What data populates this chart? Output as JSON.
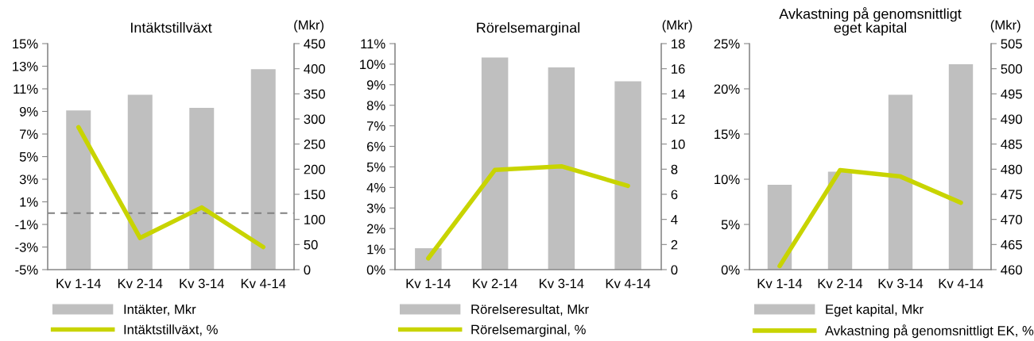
{
  "chart_data": [
    {
      "type": "bar",
      "title": "Intäktstillväxt",
      "categories": [
        "Kv 1-14",
        "Kv 2-14",
        "Kv 3-14",
        "Kv 4-14"
      ],
      "series": [
        {
          "name": "Intäkter, Mkr",
          "axis": "y2",
          "color": "#bfbfbf",
          "values": [
            317,
            348,
            322,
            399
          ]
        },
        {
          "name": "Intäktstillväxt, %",
          "type": "line",
          "axis": "y",
          "color": "#c8d400",
          "values": [
            7.6,
            -2.2,
            0.5,
            -3.0
          ]
        }
      ],
      "ylim": [
        -5,
        15
      ],
      "yticks": [
        {
          "value": -5,
          "label": "-5%"
        },
        {
          "value": -3,
          "label": "-3%"
        },
        {
          "value": -1,
          "label": "-1%"
        },
        {
          "value": 1,
          "label": "1%"
        },
        {
          "value": 3,
          "label": "3%"
        },
        {
          "value": 5,
          "label": "5%"
        },
        {
          "value": 7,
          "label": "7%"
        },
        {
          "value": 9,
          "label": "9%"
        },
        {
          "value": 11,
          "label": "11%"
        },
        {
          "value": 13,
          "label": "13%"
        },
        {
          "value": 15,
          "label": "15%"
        }
      ],
      "y2lim": [
        0,
        450
      ],
      "y2ticks": [
        0,
        50,
        100,
        150,
        200,
        250,
        300,
        350,
        400,
        450
      ],
      "y2label": "(Mkr)",
      "ref_lines": [
        {
          "axis": "y",
          "value": 0,
          "color": "#808080",
          "line_style": "dashed"
        }
      ],
      "legend": "bottom",
      "grid": false
    },
    {
      "type": "bar",
      "title": "Rörelsemarginal",
      "categories": [
        "Kv 1-14",
        "Kv 2-14",
        "Kv 3-14",
        "Kv 4-14"
      ],
      "series": [
        {
          "name": "Rörelseresultat, Mkr",
          "axis": "y2",
          "color": "#bfbfbf",
          "values": [
            1.7,
            16.9,
            16.1,
            15.0
          ]
        },
        {
          "name": "Rörelsemarginal, %",
          "type": "line",
          "axis": "y",
          "color": "#c8d400",
          "values": [
            0.55,
            4.85,
            5.03,
            4.08
          ]
        }
      ],
      "ylim": [
        0,
        11
      ],
      "yticks": [
        {
          "value": 0,
          "label": "0%"
        },
        {
          "value": 1,
          "label": "1%"
        },
        {
          "value": 2,
          "label": "2%"
        },
        {
          "value": 3,
          "label": "3%"
        },
        {
          "value": 4,
          "label": "4%"
        },
        {
          "value": 5,
          "label": "5%"
        },
        {
          "value": 6,
          "label": "6%"
        },
        {
          "value": 7,
          "label": "7%"
        },
        {
          "value": 8,
          "label": "8%"
        },
        {
          "value": 9,
          "label": "9%"
        },
        {
          "value": 10,
          "label": "10%"
        },
        {
          "value": 11,
          "label": "11%"
        }
      ],
      "y2lim": [
        0,
        18
      ],
      "y2ticks": [
        0,
        2,
        4,
        6,
        8,
        10,
        12,
        14,
        16,
        18
      ],
      "y2label": "(Mkr)",
      "legend": "bottom",
      "grid": false
    },
    {
      "type": "bar",
      "title": "Avkastning på genomsnittligt\neget kapital",
      "categories": [
        "Kv 1-14",
        "Kv 2-14",
        "Kv 3-14",
        "Kv 4-14"
      ],
      "series": [
        {
          "name": "Eget kapital, Mkr",
          "axis": "y2",
          "color": "#bfbfbf",
          "values": [
            476.9,
            479.5,
            494.8,
            500.9
          ]
        },
        {
          "name": "Avkastning på genomsnittligt EK, %",
          "type": "line",
          "axis": "y",
          "color": "#c8d400",
          "values": [
            0.4,
            11.0,
            10.3,
            7.4
          ]
        }
      ],
      "ylim": [
        0,
        25
      ],
      "yticks": [
        {
          "value": 0,
          "label": "0%"
        },
        {
          "value": 5,
          "label": "5%"
        },
        {
          "value": 10,
          "label": "10%"
        },
        {
          "value": 15,
          "label": "15%"
        },
        {
          "value": 20,
          "label": "20%"
        },
        {
          "value": 25,
          "label": "25%"
        }
      ],
      "y2lim": [
        460,
        505
      ],
      "y2ticks": [
        460,
        465,
        470,
        475,
        480,
        485,
        490,
        495,
        500,
        505
      ],
      "y2label": "(Mkr)",
      "legend": "bottom",
      "grid": false
    }
  ]
}
